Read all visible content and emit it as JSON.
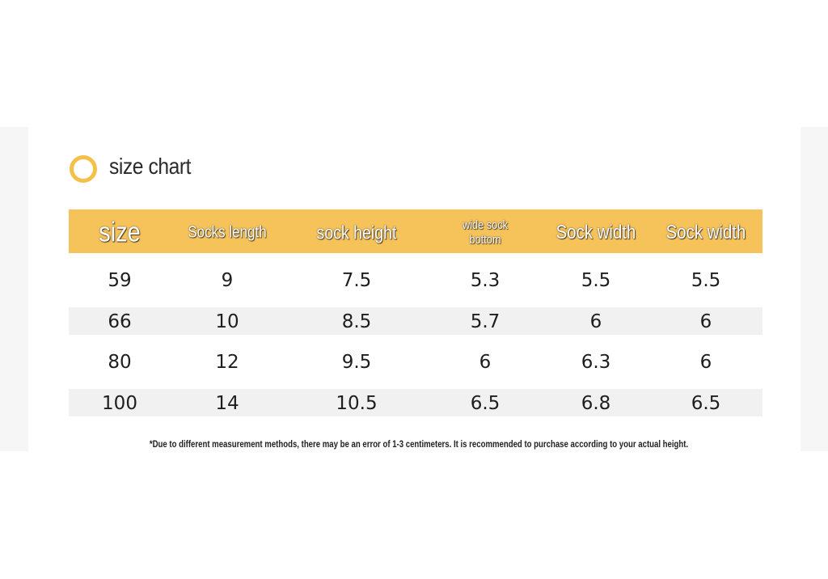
{
  "title": "size chart",
  "table": {
    "header": [
      "size",
      "Socks length",
      "sock height",
      "wide sock bottom",
      "Sock width",
      "Sock width"
    ],
    "rows": [
      [
        "59",
        "9",
        "7.5",
        "5.3",
        "5.5",
        "5.5"
      ],
      [
        "66",
        "10",
        "8.5",
        "5.7",
        "6",
        "6"
      ],
      [
        "80",
        "12",
        "9.5",
        "6",
        "6.3",
        "6"
      ],
      [
        "100",
        "14",
        "10.5",
        "6.5",
        "6.8",
        "6.5"
      ]
    ]
  },
  "footnote": "*Due to different measurement methods, there may be an error of 1-3 centimeters. It is recommended to purchase according to your actual height."
}
